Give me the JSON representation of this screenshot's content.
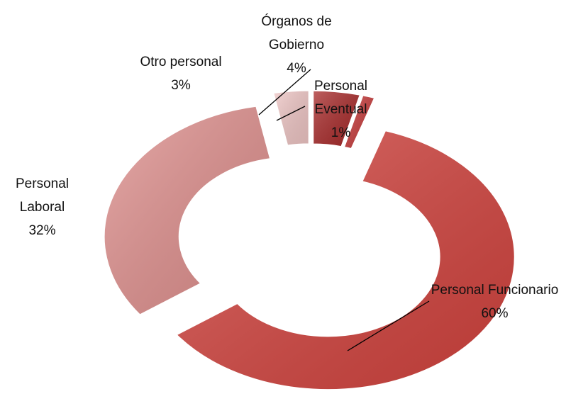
{
  "chart_data": {
    "type": "doughnut",
    "categories": [
      "Órganos de Gobierno",
      "Personal Eventual",
      "Personal Funcionario",
      "Personal Laboral",
      "Otro personal"
    ],
    "values": [
      4,
      1,
      60,
      32,
      3
    ],
    "value_labels": [
      "4%",
      "1%",
      "60%",
      "32%",
      "3%"
    ],
    "colors": [
      "#a82a2a",
      "#c63a3a",
      "#d4443f",
      "#e0908e",
      "#efc6c5"
    ]
  }
}
